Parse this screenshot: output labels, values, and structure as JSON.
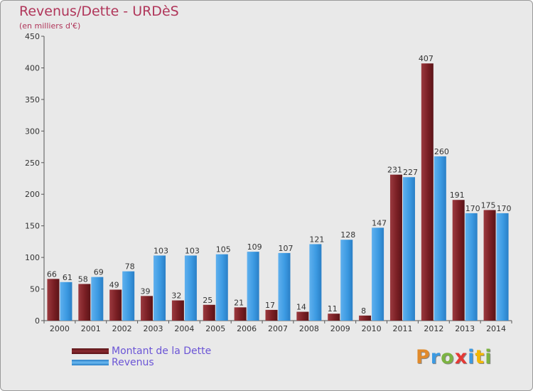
{
  "chart_data": {
    "type": "bar",
    "title": "Revenus/Dette - URDèS",
    "subtitle": "(en milliers d'€)",
    "categories": [
      "2000",
      "2001",
      "2002",
      "2003",
      "2004",
      "2005",
      "2006",
      "2007",
      "2008",
      "2009",
      "2010",
      "2011",
      "2012",
      "2013",
      "2014"
    ],
    "series": [
      {
        "name": "Montant de la Dette",
        "values": [
          66,
          58,
          49,
          39,
          32,
          25,
          21,
          17,
          14,
          11,
          8,
          231,
          407,
          191,
          175
        ],
        "color": "#7a1f24"
      },
      {
        "name": "Revenus",
        "values": [
          61,
          69,
          78,
          103,
          103,
          105,
          109,
          107,
          121,
          128,
          147,
          227,
          260,
          170,
          170
        ],
        "color": "#3c9ae2"
      }
    ],
    "ylim": [
      0,
      450
    ],
    "yticks": [
      0,
      50,
      100,
      150,
      200,
      250,
      300,
      350,
      400,
      450
    ],
    "grid": false,
    "legend_position": "bottom-left"
  },
  "logo": {
    "text": "Proxiti",
    "letters": [
      "P",
      "r",
      "o",
      "x",
      "i",
      "t",
      "i"
    ],
    "colors": [
      "#e08a2c",
      "#3c9ae2",
      "#7cb342",
      "#e53935",
      "#3c9ae2",
      "#f2b705",
      "#7cb342"
    ]
  }
}
